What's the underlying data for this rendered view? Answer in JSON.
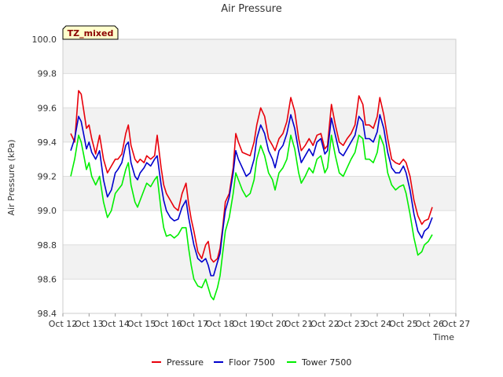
{
  "chart_data": {
    "type": "line",
    "title": "Air Pressure",
    "xlabel": "Time",
    "ylabel": "Air Pressure (kPa)",
    "badge": "TZ_mixed",
    "ylim": [
      98.4,
      100.0
    ],
    "yticks": [
      "98.4",
      "98.6",
      "98.8",
      "99.0",
      "99.2",
      "99.4",
      "99.6",
      "99.8",
      "100.0"
    ],
    "xlim": [
      12,
      27
    ],
    "xticks": [
      {
        "v": 12,
        "label": "Oct 12"
      },
      {
        "v": 13,
        "label": "Oct 13"
      },
      {
        "v": 14,
        "label": "Oct 14"
      },
      {
        "v": 15,
        "label": "Oct 15"
      },
      {
        "v": 16,
        "label": "Oct 16"
      },
      {
        "v": 17,
        "label": "Oct 17"
      },
      {
        "v": 18,
        "label": "Oct 18"
      },
      {
        "v": 19,
        "label": "Oct 19"
      },
      {
        "v": 20,
        "label": "Oct 20"
      },
      {
        "v": 21,
        "label": "Oct 21"
      },
      {
        "v": 22,
        "label": "Oct 22"
      },
      {
        "v": 23,
        "label": "Oct 23"
      },
      {
        "v": 24,
        "label": "Oct 24"
      },
      {
        "v": 25,
        "label": "Oct 25"
      },
      {
        "v": 26,
        "label": "Oct 26"
      },
      {
        "v": 27,
        "label": "Oct 27"
      }
    ],
    "grid": true,
    "legend": "bottom",
    "series": [
      {
        "name": "Pressure",
        "color": "#e8000b",
        "x": [
          12.3,
          12.45,
          12.6,
          12.7,
          12.8,
          12.9,
          13.0,
          13.1,
          13.25,
          13.4,
          13.55,
          13.7,
          13.85,
          14.0,
          14.1,
          14.25,
          14.4,
          14.5,
          14.6,
          14.75,
          14.85,
          14.95,
          15.1,
          15.2,
          15.35,
          15.5,
          15.6,
          15.75,
          15.85,
          15.95,
          16.1,
          16.25,
          16.4,
          16.55,
          16.7,
          16.8,
          16.9,
          17.0,
          17.15,
          17.3,
          17.45,
          17.55,
          17.65,
          17.75,
          17.9,
          18.0,
          18.1,
          18.2,
          18.35,
          18.5,
          18.6,
          18.7,
          18.85,
          19.0,
          19.15,
          19.3,
          19.4,
          19.55,
          19.7,
          19.85,
          20.0,
          20.1,
          20.25,
          20.4,
          20.55,
          20.7,
          20.85,
          21.0,
          21.1,
          21.25,
          21.4,
          21.55,
          21.7,
          21.85,
          22.0,
          22.1,
          22.25,
          22.4,
          22.55,
          22.7,
          22.85,
          23.0,
          23.15,
          23.3,
          23.45,
          23.55,
          23.7,
          23.85,
          24.0,
          24.1,
          24.25,
          24.4,
          24.55,
          24.7,
          24.85,
          25.0,
          25.1,
          25.25,
          25.4,
          25.55,
          25.7,
          25.8,
          25.95,
          26.1
        ],
        "y": [
          99.45,
          99.4,
          99.7,
          99.68,
          99.58,
          99.48,
          99.5,
          99.42,
          99.33,
          99.44,
          99.3,
          99.22,
          99.26,
          99.3,
          99.3,
          99.33,
          99.45,
          99.5,
          99.38,
          99.3,
          99.28,
          99.3,
          99.28,
          99.32,
          99.3,
          99.32,
          99.44,
          99.25,
          99.15,
          99.1,
          99.06,
          99.02,
          99.0,
          99.1,
          99.16,
          99.04,
          98.95,
          98.88,
          98.76,
          98.72,
          98.8,
          98.82,
          98.72,
          98.7,
          98.72,
          98.78,
          98.9,
          99.05,
          99.1,
          99.25,
          99.45,
          99.4,
          99.34,
          99.33,
          99.32,
          99.4,
          99.5,
          99.6,
          99.55,
          99.42,
          99.38,
          99.35,
          99.42,
          99.45,
          99.52,
          99.66,
          99.58,
          99.42,
          99.35,
          99.38,
          99.42,
          99.38,
          99.44,
          99.45,
          99.36,
          99.38,
          99.62,
          99.5,
          99.4,
          99.38,
          99.42,
          99.45,
          99.5,
          99.67,
          99.62,
          99.5,
          99.5,
          99.48,
          99.55,
          99.66,
          99.56,
          99.42,
          99.3,
          99.28,
          99.27,
          99.3,
          99.28,
          99.2,
          99.06,
          98.97,
          98.92,
          98.94,
          98.95,
          99.02
        ]
      },
      {
        "name": "Floor 7500",
        "color": "#0000cc",
        "x": [
          12.3,
          12.45,
          12.6,
          12.7,
          12.8,
          12.9,
          13.0,
          13.1,
          13.25,
          13.4,
          13.55,
          13.7,
          13.85,
          14.0,
          14.1,
          14.25,
          14.4,
          14.5,
          14.6,
          14.75,
          14.85,
          14.95,
          15.1,
          15.2,
          15.35,
          15.5,
          15.6,
          15.75,
          15.85,
          15.95,
          16.1,
          16.25,
          16.4,
          16.55,
          16.7,
          16.8,
          16.9,
          17.0,
          17.15,
          17.3,
          17.45,
          17.55,
          17.65,
          17.75,
          17.9,
          18.0,
          18.1,
          18.2,
          18.35,
          18.5,
          18.6,
          18.7,
          18.85,
          19.0,
          19.15,
          19.3,
          19.4,
          19.55,
          19.7,
          19.85,
          20.0,
          20.1,
          20.25,
          20.4,
          20.55,
          20.7,
          20.85,
          21.0,
          21.1,
          21.25,
          21.4,
          21.55,
          21.7,
          21.85,
          22.0,
          22.1,
          22.25,
          22.4,
          22.55,
          22.7,
          22.85,
          23.0,
          23.15,
          23.3,
          23.45,
          23.55,
          23.7,
          23.85,
          24.0,
          24.1,
          24.25,
          24.4,
          24.55,
          24.7,
          24.85,
          25.0,
          25.1,
          25.25,
          25.4,
          25.55,
          25.7,
          25.8,
          25.95,
          26.1
        ],
        "y": [
          99.35,
          99.42,
          99.55,
          99.52,
          99.44,
          99.36,
          99.4,
          99.34,
          99.3,
          99.35,
          99.18,
          99.08,
          99.12,
          99.22,
          99.24,
          99.28,
          99.38,
          99.4,
          99.28,
          99.2,
          99.18,
          99.22,
          99.25,
          99.28,
          99.26,
          99.3,
          99.32,
          99.15,
          99.06,
          99.0,
          98.96,
          98.94,
          98.95,
          99.02,
          99.06,
          98.96,
          98.88,
          98.8,
          98.72,
          98.7,
          98.72,
          98.68,
          98.62,
          98.62,
          98.7,
          98.75,
          98.88,
          99.0,
          99.08,
          99.22,
          99.35,
          99.3,
          99.25,
          99.2,
          99.22,
          99.3,
          99.42,
          99.5,
          99.45,
          99.35,
          99.3,
          99.25,
          99.35,
          99.38,
          99.45,
          99.56,
          99.48,
          99.35,
          99.28,
          99.32,
          99.36,
          99.32,
          99.4,
          99.42,
          99.33,
          99.35,
          99.54,
          99.44,
          99.34,
          99.32,
          99.36,
          99.4,
          99.44,
          99.55,
          99.52,
          99.42,
          99.42,
          99.4,
          99.46,
          99.56,
          99.48,
          99.34,
          99.25,
          99.22,
          99.22,
          99.26,
          99.22,
          99.12,
          98.98,
          98.88,
          98.84,
          98.88,
          98.9,
          98.96
        ]
      },
      {
        "name": "Tower 7500",
        "color": "#00ee00",
        "x": [
          12.3,
          12.45,
          12.6,
          12.7,
          12.8,
          12.9,
          13.0,
          13.1,
          13.25,
          13.4,
          13.55,
          13.7,
          13.85,
          14.0,
          14.1,
          14.25,
          14.4,
          14.5,
          14.6,
          14.75,
          14.85,
          14.95,
          15.1,
          15.2,
          15.35,
          15.5,
          15.6,
          15.75,
          15.85,
          15.95,
          16.1,
          16.25,
          16.4,
          16.55,
          16.7,
          16.8,
          16.9,
          17.0,
          17.15,
          17.3,
          17.45,
          17.55,
          17.65,
          17.75,
          17.9,
          18.0,
          18.1,
          18.2,
          18.35,
          18.5,
          18.6,
          18.7,
          18.85,
          19.0,
          19.15,
          19.3,
          19.4,
          19.55,
          19.7,
          19.85,
          20.0,
          20.1,
          20.25,
          20.4,
          20.55,
          20.7,
          20.85,
          21.0,
          21.1,
          21.25,
          21.4,
          21.55,
          21.7,
          21.85,
          22.0,
          22.1,
          22.25,
          22.4,
          22.55,
          22.7,
          22.85,
          23.0,
          23.15,
          23.3,
          23.45,
          23.55,
          23.7,
          23.85,
          24.0,
          24.1,
          24.25,
          24.4,
          24.55,
          24.7,
          24.85,
          25.0,
          25.1,
          25.25,
          25.4,
          25.55,
          25.7,
          25.8,
          25.95,
          26.1
        ],
        "y": [
          99.2,
          99.3,
          99.44,
          99.4,
          99.32,
          99.24,
          99.28,
          99.2,
          99.15,
          99.2,
          99.05,
          98.96,
          99.0,
          99.1,
          99.12,
          99.15,
          99.24,
          99.28,
          99.15,
          99.05,
          99.02,
          99.06,
          99.12,
          99.16,
          99.14,
          99.18,
          99.2,
          99.0,
          98.9,
          98.85,
          98.86,
          98.84,
          98.86,
          98.9,
          98.9,
          98.78,
          98.68,
          98.6,
          98.56,
          98.55,
          98.6,
          98.55,
          98.5,
          98.48,
          98.55,
          98.62,
          98.75,
          98.88,
          98.96,
          99.1,
          99.22,
          99.18,
          99.12,
          99.08,
          99.1,
          99.18,
          99.3,
          99.38,
          99.32,
          99.22,
          99.18,
          99.12,
          99.22,
          99.25,
          99.3,
          99.44,
          99.36,
          99.22,
          99.16,
          99.2,
          99.25,
          99.22,
          99.3,
          99.32,
          99.22,
          99.25,
          99.44,
          99.32,
          99.22,
          99.2,
          99.25,
          99.3,
          99.34,
          99.44,
          99.42,
          99.3,
          99.3,
          99.28,
          99.34,
          99.44,
          99.38,
          99.22,
          99.15,
          99.12,
          99.14,
          99.15,
          99.1,
          98.98,
          98.84,
          98.74,
          98.76,
          98.8,
          98.82,
          98.86
        ]
      }
    ]
  }
}
